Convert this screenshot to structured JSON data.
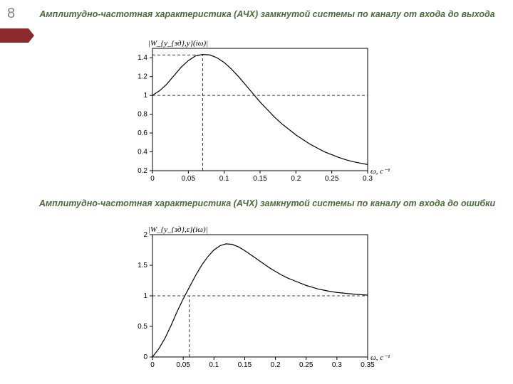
{
  "page_number": "8",
  "marker_color": "#8b2a2a",
  "title1_main": "Амплитудно-частотная характеристика (АЧХ) замкнутой системы по каналу от входа до",
  "title1_em": "выхода",
  "title2_main": "Амплитудно-частотная характеристика (АЧХ) замкнутой системы по каналу от входа до",
  "title2_em": "ошибки",
  "title_color": "#4a6b3a",
  "chart1": {
    "type": "line",
    "ylabel_tex": "|W_{y_{зд},y}(iω)|",
    "xlabel": "ω, c⁻¹",
    "xlim": [
      0,
      0.3
    ],
    "ylim": [
      0.2,
      1.5
    ],
    "xticks": [
      0,
      0.05,
      0.1,
      0.15,
      0.2,
      0.25,
      0.3
    ],
    "yticks": [
      0.2,
      0.4,
      0.6,
      0.8,
      1,
      1.2,
      1.4
    ],
    "curve_color": "#000000",
    "background_color": "#ffffff",
    "dash_color": "#000000",
    "dash_h_y": 1.43,
    "dash_h_x_to": 0.07,
    "dash_v_x": 0.07,
    "dash_v_y_to": 1.43,
    "ref_line_y": 1.0,
    "data": [
      [
        0.0,
        1.0
      ],
      [
        0.01,
        1.05
      ],
      [
        0.02,
        1.12
      ],
      [
        0.03,
        1.21
      ],
      [
        0.04,
        1.3
      ],
      [
        0.05,
        1.37
      ],
      [
        0.06,
        1.42
      ],
      [
        0.07,
        1.435
      ],
      [
        0.08,
        1.43
      ],
      [
        0.09,
        1.4
      ],
      [
        0.1,
        1.35
      ],
      [
        0.11,
        1.28
      ],
      [
        0.12,
        1.2
      ],
      [
        0.13,
        1.11
      ],
      [
        0.14,
        1.02
      ],
      [
        0.15,
        0.93
      ],
      [
        0.16,
        0.85
      ],
      [
        0.17,
        0.77
      ],
      [
        0.18,
        0.7
      ],
      [
        0.19,
        0.64
      ],
      [
        0.2,
        0.58
      ],
      [
        0.21,
        0.53
      ],
      [
        0.22,
        0.48
      ],
      [
        0.23,
        0.44
      ],
      [
        0.24,
        0.4
      ],
      [
        0.25,
        0.37
      ],
      [
        0.26,
        0.34
      ],
      [
        0.27,
        0.315
      ],
      [
        0.28,
        0.295
      ],
      [
        0.29,
        0.28
      ],
      [
        0.3,
        0.265
      ]
    ]
  },
  "chart2": {
    "type": "line",
    "ylabel_tex": "|W_{y_{зд},ε}(iω)|",
    "xlabel": "ω, c⁻¹",
    "xlim": [
      0,
      0.35
    ],
    "ylim": [
      0,
      2.0
    ],
    "xticks": [
      0,
      0.05,
      0.1,
      0.15,
      0.2,
      0.25,
      0.3,
      0.35
    ],
    "yticks": [
      0,
      0.5,
      1,
      1.5,
      2
    ],
    "curve_color": "#000000",
    "background_color": "#ffffff",
    "dash_color": "#000000",
    "dash_h_y": 1.0,
    "dash_v_x": 0.06,
    "dash_v_y_to": 1.0,
    "data": [
      [
        0.0,
        0.0
      ],
      [
        0.01,
        0.13
      ],
      [
        0.02,
        0.3
      ],
      [
        0.03,
        0.51
      ],
      [
        0.04,
        0.74
      ],
      [
        0.05,
        0.95
      ],
      [
        0.06,
        1.14
      ],
      [
        0.07,
        1.33
      ],
      [
        0.08,
        1.5
      ],
      [
        0.09,
        1.64
      ],
      [
        0.1,
        1.75
      ],
      [
        0.11,
        1.82
      ],
      [
        0.12,
        1.85
      ],
      [
        0.13,
        1.84
      ],
      [
        0.14,
        1.8
      ],
      [
        0.15,
        1.74
      ],
      [
        0.16,
        1.67
      ],
      [
        0.17,
        1.6
      ],
      [
        0.18,
        1.53
      ],
      [
        0.19,
        1.46
      ],
      [
        0.2,
        1.4
      ],
      [
        0.21,
        1.34
      ],
      [
        0.22,
        1.29
      ],
      [
        0.23,
        1.25
      ],
      [
        0.24,
        1.21
      ],
      [
        0.25,
        1.17
      ],
      [
        0.26,
        1.14
      ],
      [
        0.27,
        1.11
      ],
      [
        0.28,
        1.09
      ],
      [
        0.29,
        1.07
      ],
      [
        0.3,
        1.055
      ],
      [
        0.31,
        1.045
      ],
      [
        0.32,
        1.035
      ],
      [
        0.33,
        1.025
      ],
      [
        0.34,
        1.018
      ],
      [
        0.35,
        1.012
      ]
    ]
  }
}
